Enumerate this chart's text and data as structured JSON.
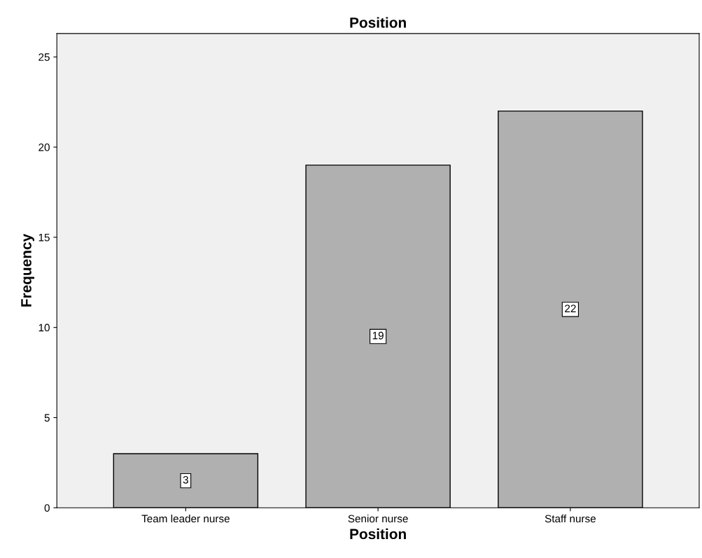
{
  "chart_data": {
    "type": "bar",
    "title": "Position",
    "xlabel": "Position",
    "ylabel": "Frequency",
    "categories": [
      "Team leader nurse",
      "Senior nurse",
      "Staff nurse"
    ],
    "values": [
      3,
      19,
      22
    ],
    "color": "#b0b0b0",
    "ylim": [
      0,
      26.3
    ],
    "yticks": [
      0,
      5,
      10,
      15,
      20,
      25
    ],
    "grid": false,
    "data_labels": true
  }
}
